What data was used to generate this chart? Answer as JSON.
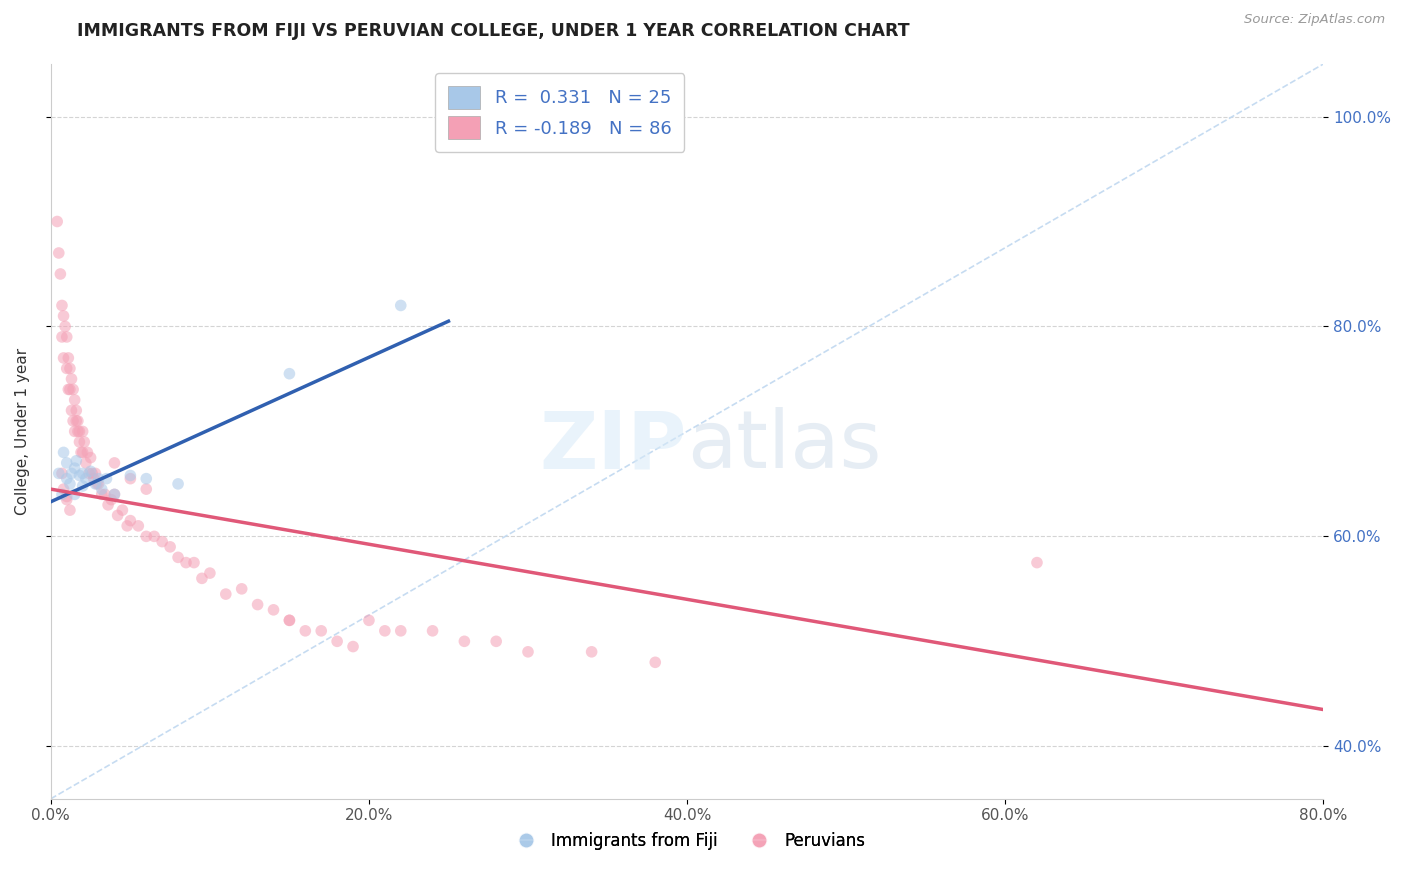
{
  "title": "IMMIGRANTS FROM FIJI VS PERUVIAN COLLEGE, UNDER 1 YEAR CORRELATION CHART",
  "source_text": "Source: ZipAtlas.com",
  "ylabel": "College, Under 1 year",
  "legend_label1": "Immigrants from Fiji",
  "legend_label2": "Peruvians",
  "R1": 0.331,
  "N1": 25,
  "R2": -0.189,
  "N2": 86,
  "xlim": [
    0.0,
    0.8
  ],
  "ylim": [
    0.35,
    1.05
  ],
  "xticks": [
    0.0,
    0.2,
    0.4,
    0.6,
    0.8
  ],
  "xticklabels": [
    "0.0%",
    "20.0%",
    "40.0%",
    "60.0%",
    "80.0%"
  ],
  "yticks": [
    0.4,
    0.6,
    0.8,
    1.0
  ],
  "yticklabels": [
    "40.0%",
    "60.0%",
    "80.0%",
    "100.0%"
  ],
  "color_fiji": "#a8c8e8",
  "color_peru": "#f4a0b5",
  "color_fiji_line": "#3060b0",
  "color_peru_line": "#e05878",
  "color_diag": "#c0d8f0",
  "fiji_x": [
    0.005,
    0.007,
    0.008,
    0.01,
    0.01,
    0.012,
    0.013,
    0.015,
    0.015,
    0.016,
    0.018,
    0.02,
    0.02,
    0.022,
    0.025,
    0.028,
    0.03,
    0.032,
    0.035,
    0.04,
    0.05,
    0.06,
    0.08,
    0.15,
    0.22
  ],
  "fiji_y": [
    0.66,
    0.64,
    0.68,
    0.655,
    0.67,
    0.65,
    0.66,
    0.64,
    0.665,
    0.672,
    0.658,
    0.648,
    0.66,
    0.655,
    0.662,
    0.65,
    0.655,
    0.645,
    0.655,
    0.64,
    0.658,
    0.655,
    0.65,
    0.755,
    0.82
  ],
  "peru_x": [
    0.004,
    0.005,
    0.006,
    0.007,
    0.007,
    0.008,
    0.008,
    0.009,
    0.01,
    0.01,
    0.011,
    0.011,
    0.012,
    0.012,
    0.013,
    0.013,
    0.014,
    0.014,
    0.015,
    0.015,
    0.016,
    0.016,
    0.017,
    0.017,
    0.018,
    0.018,
    0.019,
    0.02,
    0.02,
    0.021,
    0.022,
    0.023,
    0.024,
    0.025,
    0.026,
    0.027,
    0.028,
    0.029,
    0.03,
    0.032,
    0.034,
    0.036,
    0.038,
    0.04,
    0.042,
    0.045,
    0.048,
    0.05,
    0.055,
    0.06,
    0.065,
    0.07,
    0.075,
    0.08,
    0.085,
    0.09,
    0.095,
    0.1,
    0.11,
    0.12,
    0.13,
    0.14,
    0.15,
    0.16,
    0.17,
    0.18,
    0.19,
    0.2,
    0.21,
    0.22,
    0.24,
    0.26,
    0.28,
    0.3,
    0.34,
    0.38,
    0.04,
    0.05,
    0.06,
    0.15,
    0.007,
    0.008,
    0.01,
    0.012,
    0.62,
    0.01
  ],
  "peru_y": [
    0.9,
    0.87,
    0.85,
    0.82,
    0.79,
    0.81,
    0.77,
    0.8,
    0.76,
    0.79,
    0.74,
    0.77,
    0.74,
    0.76,
    0.72,
    0.75,
    0.71,
    0.74,
    0.7,
    0.73,
    0.71,
    0.72,
    0.7,
    0.71,
    0.69,
    0.7,
    0.68,
    0.7,
    0.68,
    0.69,
    0.67,
    0.68,
    0.66,
    0.675,
    0.66,
    0.655,
    0.66,
    0.65,
    0.65,
    0.64,
    0.64,
    0.63,
    0.635,
    0.64,
    0.62,
    0.625,
    0.61,
    0.615,
    0.61,
    0.6,
    0.6,
    0.595,
    0.59,
    0.58,
    0.575,
    0.575,
    0.56,
    0.565,
    0.545,
    0.55,
    0.535,
    0.53,
    0.52,
    0.51,
    0.51,
    0.5,
    0.495,
    0.52,
    0.51,
    0.51,
    0.51,
    0.5,
    0.5,
    0.49,
    0.49,
    0.48,
    0.67,
    0.655,
    0.645,
    0.52,
    0.66,
    0.645,
    0.635,
    0.625,
    0.575,
    0.638
  ],
  "background_color": "#ffffff",
  "grid_color": "#d0d0d0",
  "marker_size": 70,
  "marker_alpha": 0.55,
  "fiji_trendline_x": [
    0.0,
    0.25
  ],
  "fiji_trendline_y": [
    0.633,
    0.805
  ],
  "peru_trendline_x": [
    0.0,
    0.8
  ],
  "peru_trendline_y": [
    0.645,
    0.435
  ]
}
